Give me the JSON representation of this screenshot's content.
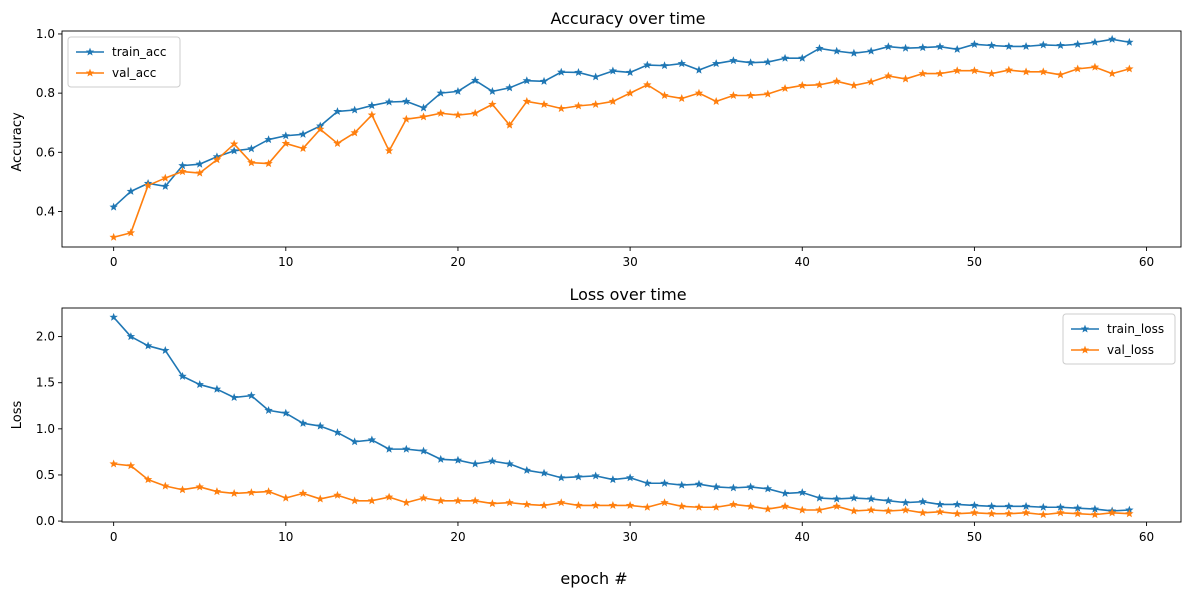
{
  "figure": {
    "supxlabel": "epoch #"
  },
  "colors": {
    "train": "#1f77b4",
    "val": "#ff7f0e"
  },
  "chart_data": [
    {
      "type": "line",
      "title": "Accuracy over time",
      "xlabel": "",
      "ylabel": "Accuracy",
      "xlim": [
        -3,
        62
      ],
      "ylim": [
        0.28,
        1.01
      ],
      "xticks": [
        0,
        10,
        20,
        30,
        40,
        50,
        60
      ],
      "yticks": [
        0.4,
        0.6,
        0.8,
        1.0
      ],
      "ytick_labels": [
        "0.4",
        "0.6",
        "0.8",
        "1.0"
      ],
      "legend": "top-left",
      "grid": false,
      "marker": "star",
      "series": [
        {
          "name": "train_acc",
          "color": "#1f77b4",
          "x": [
            0,
            1,
            2,
            3,
            4,
            5,
            6,
            7,
            8,
            9,
            10,
            11,
            12,
            13,
            14,
            15,
            16,
            17,
            18,
            19,
            20,
            21,
            22,
            23,
            24,
            25,
            26,
            27,
            28,
            29,
            30,
            31,
            32,
            33,
            34,
            35,
            36,
            37,
            38,
            39,
            40,
            41,
            42,
            43,
            44,
            45,
            46,
            47,
            48,
            49,
            50,
            51,
            52,
            53,
            54,
            55,
            56,
            57,
            58,
            59
          ],
          "y": [
            0.415,
            0.468,
            0.495,
            0.485,
            0.555,
            0.56,
            0.585,
            0.605,
            0.612,
            0.643,
            0.656,
            0.661,
            0.689,
            0.738,
            0.743,
            0.758,
            0.77,
            0.772,
            0.75,
            0.8,
            0.806,
            0.843,
            0.806,
            0.818,
            0.842,
            0.84,
            0.871,
            0.87,
            0.855,
            0.875,
            0.87,
            0.895,
            0.893,
            0.9,
            0.878,
            0.9,
            0.91,
            0.903,
            0.905,
            0.918,
            0.918,
            0.951,
            0.942,
            0.935,
            0.942,
            0.957,
            0.952,
            0.954,
            0.957,
            0.948,
            0.965,
            0.961,
            0.958,
            0.958,
            0.963,
            0.961,
            0.965,
            0.972,
            0.982,
            0.972
          ]
        },
        {
          "name": "val_acc",
          "color": "#ff7f0e",
          "x": [
            0,
            1,
            2,
            3,
            4,
            5,
            6,
            7,
            8,
            9,
            10,
            11,
            12,
            13,
            14,
            15,
            16,
            17,
            18,
            19,
            20,
            21,
            22,
            23,
            24,
            25,
            26,
            27,
            28,
            29,
            30,
            31,
            32,
            33,
            34,
            35,
            36,
            37,
            38,
            39,
            40,
            41,
            42,
            43,
            44,
            45,
            46,
            47,
            48,
            49,
            50,
            51,
            52,
            53,
            54,
            55,
            56,
            57,
            58,
            59
          ],
          "y": [
            0.313,
            0.328,
            0.488,
            0.513,
            0.535,
            0.53,
            0.575,
            0.628,
            0.565,
            0.562,
            0.63,
            0.613,
            0.678,
            0.63,
            0.666,
            0.726,
            0.605,
            0.712,
            0.72,
            0.732,
            0.726,
            0.732,
            0.762,
            0.692,
            0.772,
            0.762,
            0.748,
            0.757,
            0.762,
            0.772,
            0.8,
            0.828,
            0.792,
            0.782,
            0.8,
            0.772,
            0.792,
            0.792,
            0.797,
            0.816,
            0.826,
            0.828,
            0.84,
            0.826,
            0.838,
            0.858,
            0.848,
            0.866,
            0.866,
            0.876,
            0.876,
            0.866,
            0.878,
            0.872,
            0.872,
            0.862,
            0.882,
            0.888,
            0.866,
            0.882
          ]
        }
      ]
    },
    {
      "type": "line",
      "title": "Loss over time",
      "xlabel": "",
      "ylabel": "Loss",
      "xlim": [
        -3,
        62
      ],
      "ylim": [
        -0.01,
        2.31
      ],
      "xticks": [
        0,
        10,
        20,
        30,
        40,
        50,
        60
      ],
      "yticks": [
        0.0,
        0.5,
        1.0,
        1.5,
        2.0
      ],
      "ytick_labels": [
        "0.0",
        "0.5",
        "1.0",
        "1.5",
        "2.0"
      ],
      "legend": "top-right",
      "grid": false,
      "marker": "star",
      "series": [
        {
          "name": "train_loss",
          "color": "#1f77b4",
          "x": [
            0,
            1,
            2,
            3,
            4,
            5,
            6,
            7,
            8,
            9,
            10,
            11,
            12,
            13,
            14,
            15,
            16,
            17,
            18,
            19,
            20,
            21,
            22,
            23,
            24,
            25,
            26,
            27,
            28,
            29,
            30,
            31,
            32,
            33,
            34,
            35,
            36,
            37,
            38,
            39,
            40,
            41,
            42,
            43,
            44,
            45,
            46,
            47,
            48,
            49,
            50,
            51,
            52,
            53,
            54,
            55,
            56,
            57,
            58,
            59
          ],
          "y": [
            2.21,
            2.0,
            1.9,
            1.85,
            1.57,
            1.48,
            1.43,
            1.34,
            1.36,
            1.2,
            1.17,
            1.06,
            1.03,
            0.96,
            0.86,
            0.88,
            0.78,
            0.78,
            0.76,
            0.67,
            0.66,
            0.62,
            0.65,
            0.62,
            0.55,
            0.52,
            0.47,
            0.48,
            0.49,
            0.45,
            0.47,
            0.41,
            0.41,
            0.39,
            0.4,
            0.37,
            0.36,
            0.37,
            0.35,
            0.3,
            0.31,
            0.25,
            0.24,
            0.25,
            0.24,
            0.22,
            0.2,
            0.21,
            0.18,
            0.18,
            0.17,
            0.16,
            0.16,
            0.16,
            0.15,
            0.15,
            0.14,
            0.13,
            0.11,
            0.12
          ]
        },
        {
          "name": "val_loss",
          "color": "#ff7f0e",
          "x": [
            0,
            1,
            2,
            3,
            4,
            5,
            6,
            7,
            8,
            9,
            10,
            11,
            12,
            13,
            14,
            15,
            16,
            17,
            18,
            19,
            20,
            21,
            22,
            23,
            24,
            25,
            26,
            27,
            28,
            29,
            30,
            31,
            32,
            33,
            34,
            35,
            36,
            37,
            38,
            39,
            40,
            41,
            42,
            43,
            44,
            45,
            46,
            47,
            48,
            49,
            50,
            51,
            52,
            53,
            54,
            55,
            56,
            57,
            58,
            59
          ],
          "y": [
            0.62,
            0.6,
            0.45,
            0.38,
            0.34,
            0.37,
            0.32,
            0.3,
            0.31,
            0.32,
            0.25,
            0.3,
            0.24,
            0.28,
            0.22,
            0.22,
            0.26,
            0.2,
            0.25,
            0.22,
            0.22,
            0.22,
            0.19,
            0.2,
            0.18,
            0.17,
            0.2,
            0.17,
            0.17,
            0.17,
            0.17,
            0.15,
            0.2,
            0.16,
            0.15,
            0.15,
            0.18,
            0.16,
            0.13,
            0.16,
            0.12,
            0.12,
            0.16,
            0.11,
            0.12,
            0.11,
            0.12,
            0.09,
            0.1,
            0.08,
            0.09,
            0.08,
            0.08,
            0.09,
            0.07,
            0.09,
            0.08,
            0.07,
            0.09,
            0.08
          ]
        }
      ]
    }
  ]
}
